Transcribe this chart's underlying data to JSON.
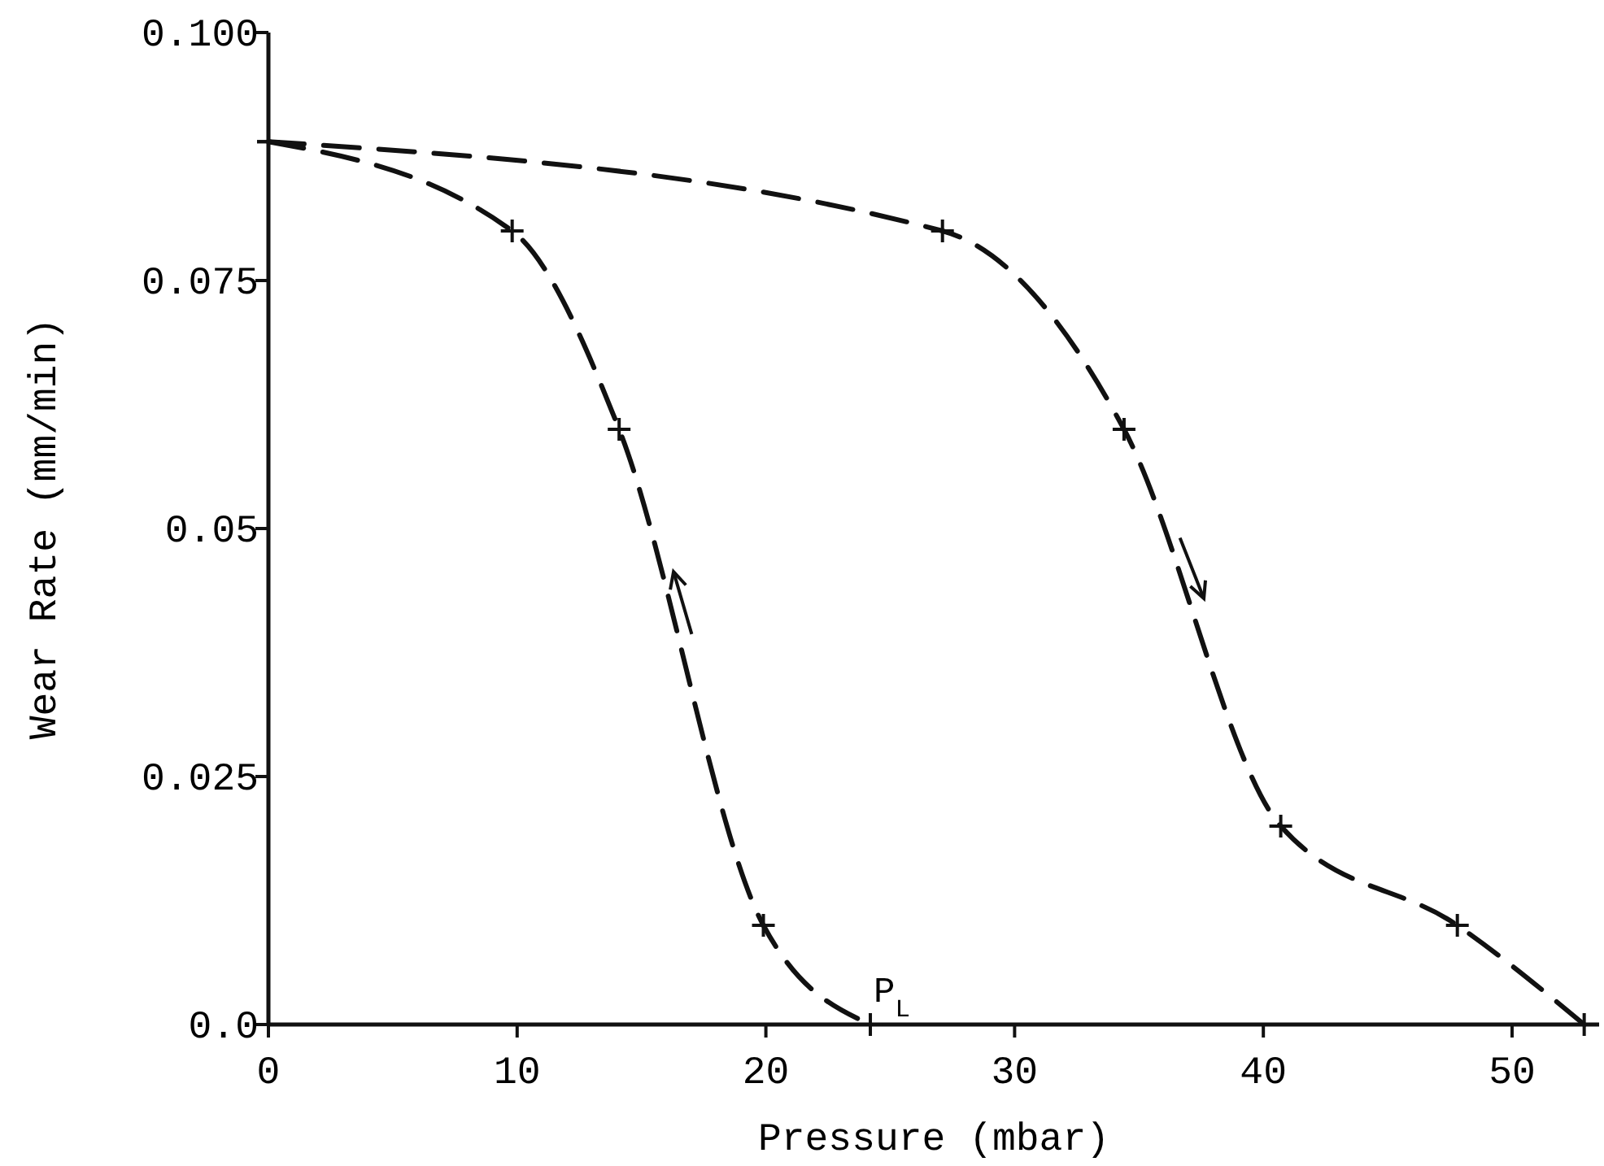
{
  "chart_data": {
    "type": "line",
    "xlabel": "Pressure (mbar)",
    "ylabel": "Wear Rate (mm/min)",
    "xlim": [
      0,
      53.5
    ],
    "xticks": [
      0,
      10,
      20,
      30,
      40,
      50
    ],
    "ylim": [
      0,
      0.1
    ],
    "yticks": [
      {
        "value": 0,
        "label": "0.0"
      },
      0.025,
      0.05,
      0.075,
      {
        "value": 0.1,
        "label": "0.100"
      }
    ],
    "series": [
      {
        "color": "#111111",
        "x": [
          0,
          9.8,
          14.1,
          19.9,
          24.2
        ],
        "values": [
          0.089,
          0.08,
          0.06,
          0.01,
          0
        ]
      },
      {
        "color": "#111111",
        "x": [
          0,
          27.1,
          34.4,
          40.7,
          47.8,
          52.9
        ],
        "values": [
          0.089,
          0.08,
          0.06,
          0.02,
          0.01,
          0
        ]
      }
    ],
    "annotations": [
      {
        "text": "P$_{L}$",
        "x": 24.2,
        "y": 0
      }
    ],
    "marker": "cross",
    "line_style": "dashed",
    "grid": false
  }
}
